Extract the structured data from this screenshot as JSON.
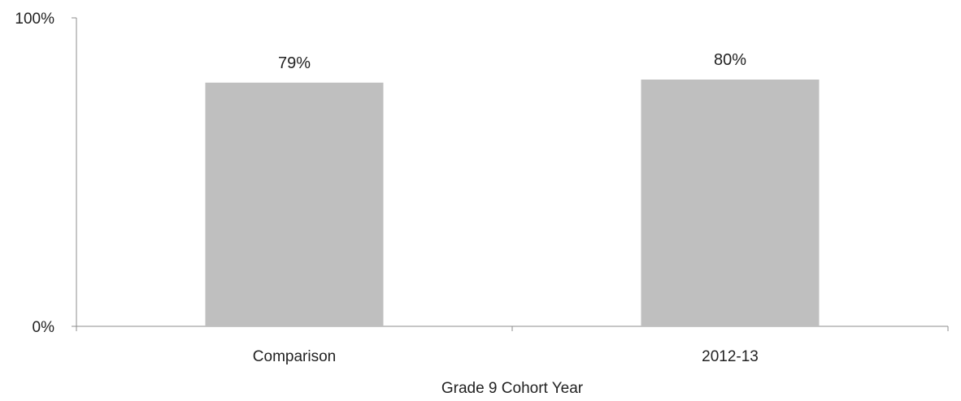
{
  "chart_data": {
    "type": "bar",
    "categories": [
      "Comparison",
      "2012-13"
    ],
    "values": [
      79,
      80
    ],
    "data_labels": [
      "79%",
      "80%"
    ],
    "xlabel": "Grade 9 Cohort Year",
    "ylabel": "",
    "ylim": [
      0,
      100
    ],
    "y_ticks": [
      {
        "value": 0,
        "label": "0%"
      },
      {
        "value": 100,
        "label": "100%"
      }
    ],
    "bar_color": "#bfbfbf",
    "axis_color": "#8c8c8c",
    "grid": false,
    "legend": "none"
  }
}
